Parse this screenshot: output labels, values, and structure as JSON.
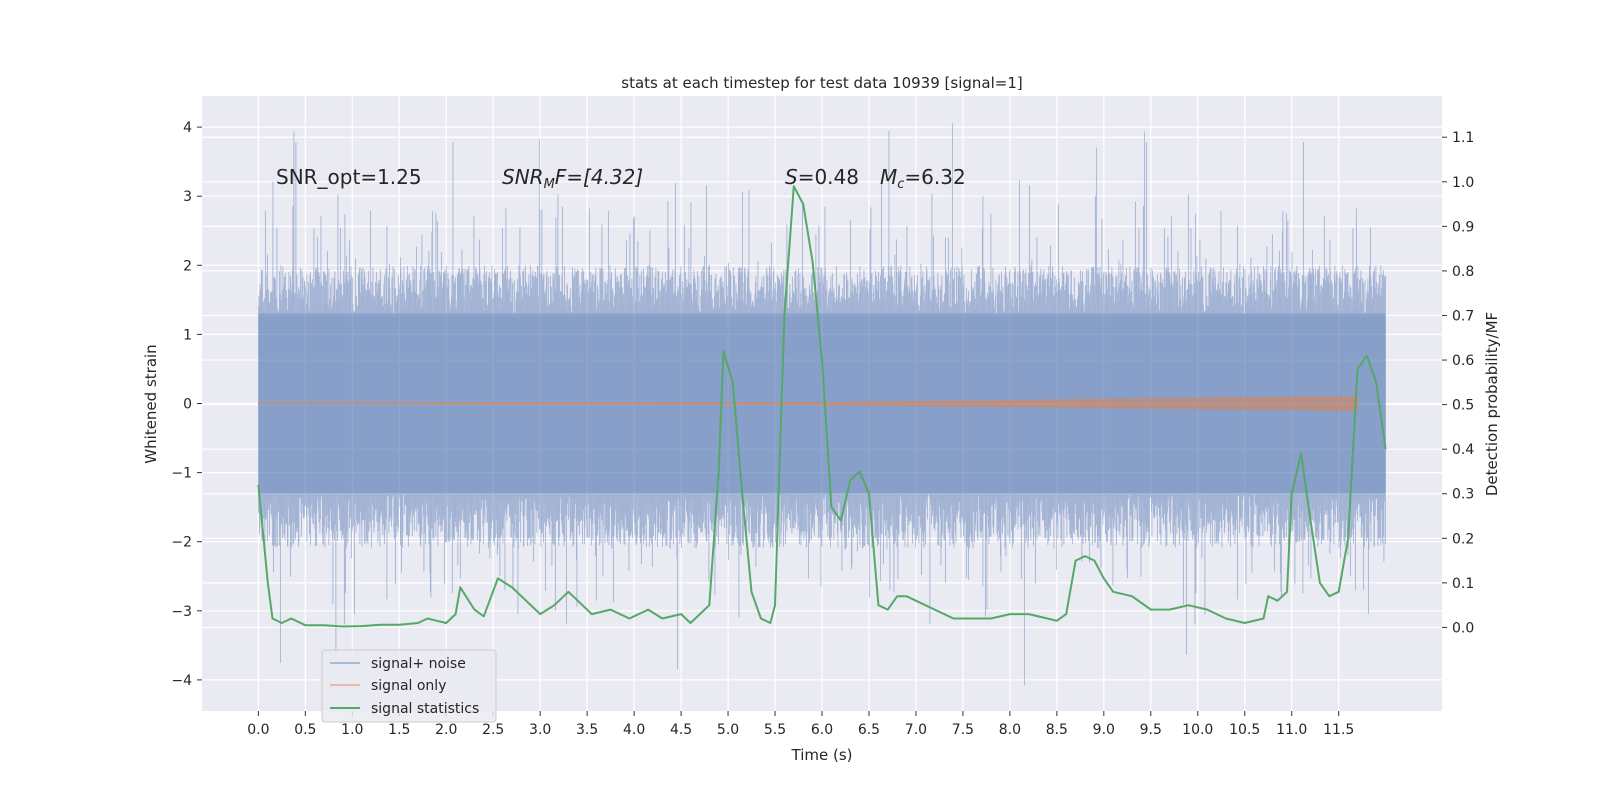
{
  "chart_data": {
    "type": "line",
    "title": "stats at each timestep for test data 10939 [signal=1]",
    "xlabel": "Time (s)",
    "ylabel": "Whitened strain",
    "y2label": "Detection probability/MF",
    "xlim": [
      -0.6,
      12.6
    ],
    "ylim": [
      -4.45,
      4.45
    ],
    "y2lim": [
      -0.1875,
      1.1925
    ],
    "x_ticks": [
      "0.0",
      "0.5",
      "1.0",
      "1.5",
      "2.0",
      "2.5",
      "3.0",
      "3.5",
      "4.0",
      "4.5",
      "5.0",
      "5.5",
      "6.0",
      "6.5",
      "7.0",
      "7.5",
      "8.0",
      "8.5",
      "9.0",
      "9.5",
      "10.0",
      "10.5",
      "11.0",
      "11.5"
    ],
    "y_ticks": [
      "4",
      "3",
      "2",
      "1",
      "0",
      "−1",
      "−2",
      "−3",
      "−4"
    ],
    "y2_ticks": [
      "1.1",
      "1.0",
      "0.9",
      "0.8",
      "0.7",
      "0.6",
      "0.5",
      "0.4",
      "0.3",
      "0.2",
      "0.1",
      "0.0"
    ],
    "grid": true,
    "legend_position": "lower-left",
    "annotations": {
      "snr_opt": "SNR_opt=1.25",
      "snr_mf_main": "SNR",
      "snr_mf_sub": "M",
      "snr_mf_rest": "F=[4.32]",
      "s_main": "S",
      "s_rest": "=0.48",
      "mc_main": "M",
      "mc_sub": "c",
      "mc_rest": "=6.32"
    },
    "series": [
      {
        "name": "signal+ noise",
        "color": "#4c72b0",
        "time_range": [
          0.0,
          12.0
        ],
        "typical_amplitude": 1.3,
        "peak_amplitude": 4.1
      },
      {
        "name": "signal only",
        "color": "#dd8452",
        "time_range": [
          0.0,
          11.7
        ],
        "end_amplitude": 0.1
      },
      {
        "name": "signal statistics",
        "color": "#55a868",
        "x": [
          0.0,
          0.1,
          0.15,
          0.25,
          0.35,
          0.5,
          0.7,
          0.9,
          1.1,
          1.3,
          1.5,
          1.7,
          1.8,
          1.9,
          2.0,
          2.1,
          2.15,
          2.3,
          2.4,
          2.55,
          2.7,
          2.85,
          3.0,
          3.15,
          3.3,
          3.45,
          3.55,
          3.75,
          3.95,
          4.15,
          4.3,
          4.5,
          4.6,
          4.7,
          4.8,
          4.9,
          4.95,
          5.05,
          5.15,
          5.25,
          5.35,
          5.45,
          5.5,
          5.6,
          5.7,
          5.8,
          5.9,
          6.0,
          6.1,
          6.2,
          6.3,
          6.4,
          6.5,
          6.6,
          6.7,
          6.8,
          6.9,
          7.0,
          7.2,
          7.4,
          7.6,
          7.8,
          8.0,
          8.2,
          8.4,
          8.5,
          8.6,
          8.7,
          8.8,
          8.9,
          9.0,
          9.1,
          9.3,
          9.5,
          9.7,
          9.9,
          10.1,
          10.3,
          10.5,
          10.7,
          10.75,
          10.85,
          10.95,
          11.0,
          11.1,
          11.2,
          11.3,
          11.4,
          11.5,
          11.6,
          11.7,
          11.8,
          11.9,
          12.0
        ],
        "values": [
          0.32,
          0.1,
          0.02,
          0.01,
          0.02,
          0.005,
          0.005,
          0.002,
          0.003,
          0.006,
          0.006,
          0.01,
          0.02,
          0.015,
          0.01,
          0.03,
          0.09,
          0.04,
          0.025,
          0.11,
          0.09,
          0.06,
          0.03,
          0.05,
          0.08,
          0.05,
          0.03,
          0.04,
          0.02,
          0.04,
          0.02,
          0.03,
          0.01,
          0.03,
          0.05,
          0.35,
          0.62,
          0.55,
          0.3,
          0.08,
          0.02,
          0.01,
          0.05,
          0.7,
          0.99,
          0.95,
          0.82,
          0.6,
          0.27,
          0.24,
          0.33,
          0.35,
          0.3,
          0.05,
          0.04,
          0.07,
          0.07,
          0.06,
          0.04,
          0.02,
          0.02,
          0.02,
          0.03,
          0.03,
          0.02,
          0.015,
          0.03,
          0.15,
          0.16,
          0.15,
          0.11,
          0.08,
          0.07,
          0.04,
          0.04,
          0.05,
          0.04,
          0.02,
          0.01,
          0.02,
          0.07,
          0.06,
          0.08,
          0.3,
          0.39,
          0.24,
          0.1,
          0.07,
          0.08,
          0.2,
          0.58,
          0.61,
          0.55,
          0.4
        ]
      }
    ]
  }
}
